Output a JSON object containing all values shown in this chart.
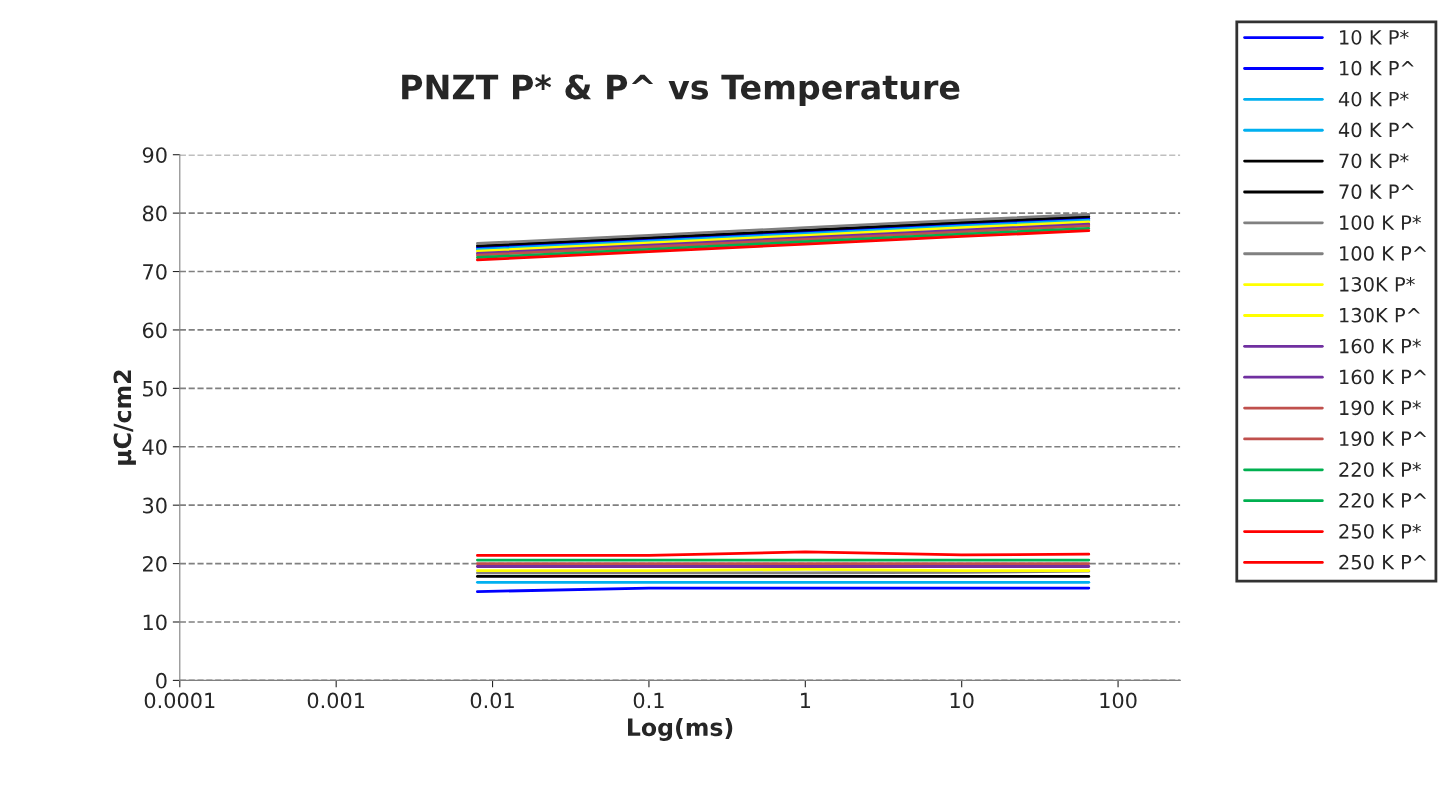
{
  "chart_data": {
    "type": "line",
    "title": "PNZT P* & P^ vs Temperature",
    "xlabel": "Log(ms)",
    "ylabel": "µC/cm2",
    "log": "x",
    "xlim": [
      0.0001,
      250
    ],
    "xticks": [
      0.0001,
      0.001,
      0.01,
      0.1,
      1,
      10,
      100
    ],
    "ylim": [
      0,
      90
    ],
    "yticks": [
      0,
      10,
      20,
      30,
      40,
      50,
      60,
      70,
      80,
      90
    ],
    "grid": "y",
    "legend": "right",
    "marker": "none",
    "line_style": "solid",
    "x": [
      0.008,
      0.1,
      1,
      10,
      65
    ],
    "series": [
      {
        "name": "10 K P*",
        "color": "#0000ff",
        "values": [
          74.1,
          75.5,
          76.8,
          78.1,
          79.1
        ]
      },
      {
        "name": "10 K P^",
        "color": "#0000ff",
        "values": [
          15.2,
          15.8,
          15.8,
          15.8,
          15.8
        ]
      },
      {
        "name": "40 K P*",
        "color": "#00b0f0",
        "values": [
          73.8,
          75.2,
          76.5,
          77.8,
          78.8
        ]
      },
      {
        "name": "40 K P^",
        "color": "#00b0f0",
        "values": [
          16.8,
          16.8,
          16.8,
          16.8,
          16.8
        ]
      },
      {
        "name": "70 K P*",
        "color": "#000000",
        "values": [
          74.4,
          75.8,
          77.1,
          78.4,
          79.4
        ]
      },
      {
        "name": "70 K P^",
        "color": "#000000",
        "values": [
          17.8,
          17.8,
          17.8,
          17.8,
          17.8
        ]
      },
      {
        "name": "100 K P*",
        "color": "#808080",
        "values": [
          74.8,
          76.2,
          77.5,
          78.8,
          79.8
        ]
      },
      {
        "name": "100 K P^",
        "color": "#808080",
        "values": [
          18.4,
          18.4,
          18.4,
          18.5,
          18.7
        ]
      },
      {
        "name": "130K P*",
        "color": "#ffff00",
        "values": [
          73.5,
          74.9,
          76.2,
          77.5,
          78.5
        ]
      },
      {
        "name": "130K P^",
        "color": "#ffff00",
        "values": [
          18.8,
          18.8,
          19.0,
          18.8,
          18.8
        ]
      },
      {
        "name": "160 K P*",
        "color": "#7030a0",
        "values": [
          73.1,
          74.5,
          75.8,
          77.1,
          78.1
        ]
      },
      {
        "name": "160 K P^",
        "color": "#7030a0",
        "values": [
          19.5,
          19.5,
          19.5,
          19.5,
          19.5
        ]
      },
      {
        "name": "190 K P*",
        "color": "#c0504d",
        "values": [
          72.8,
          74.2,
          75.5,
          76.8,
          77.8
        ]
      },
      {
        "name": "190 K P^",
        "color": "#c0504d",
        "values": [
          20.0,
          20.0,
          20.0,
          20.0,
          20.0
        ]
      },
      {
        "name": "220 K P*",
        "color": "#00b050",
        "values": [
          72.4,
          73.8,
          75.1,
          76.4,
          77.4
        ]
      },
      {
        "name": "220 K P^",
        "color": "#00b050",
        "values": [
          20.6,
          20.6,
          20.6,
          20.6,
          20.6
        ]
      },
      {
        "name": "250 K P*",
        "color": "#ff0000",
        "values": [
          72.0,
          73.4,
          74.7,
          76.0,
          77.0
        ]
      },
      {
        "name": "250 K P^",
        "color": "#ff0000",
        "values": [
          21.4,
          21.4,
          22.0,
          21.5,
          21.6
        ]
      }
    ]
  }
}
